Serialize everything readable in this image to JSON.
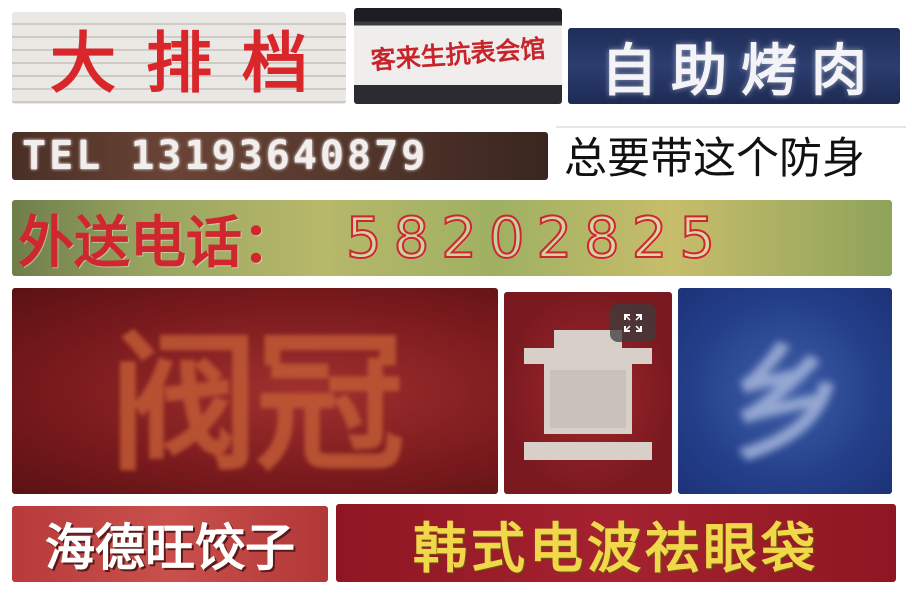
{
  "signs": {
    "s1": "大排档",
    "s2": "客来生抗表会馆",
    "s3": "自助烤肉",
    "s4": "TEL 13193640879",
    "s5": "总要带这个防身",
    "s6_label": "外送电话：",
    "s6_number": "58202825",
    "s7": "阀冠",
    "s9": "乡",
    "s10": "海德旺饺子",
    "s11": "韩式电波祛眼袋"
  },
  "icons": {
    "expand": "expand-icon",
    "glyph": "sign-glyph-icon"
  },
  "colors": {
    "sign_red": "#d8262a",
    "banner_red": "#8e1622",
    "gold": "#f0d84a",
    "navy": "#1f2e58"
  }
}
